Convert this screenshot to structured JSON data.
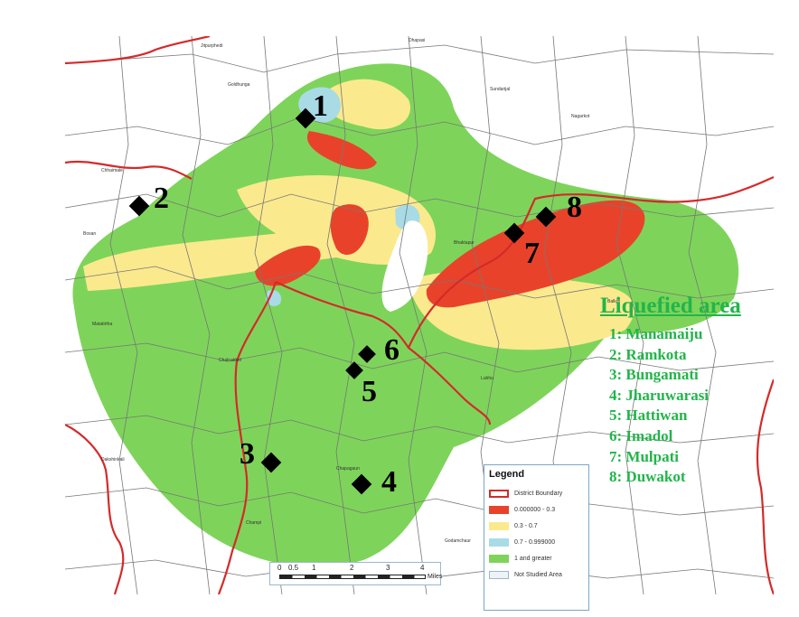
{
  "liquefied_panel": {
    "title": "Liquefied area",
    "sites": [
      "1: Manamaiju",
      "2: Ramkota",
      "3: Bungamati",
      "4: Jharuwarasi",
      "5: Hattiwan",
      "6: Imadol",
      "7: Mulpati",
      "8: Duwakot"
    ]
  },
  "map_markers": [
    {
      "number": "1",
      "site": "Manamaiju"
    },
    {
      "number": "2",
      "site": "Ramkota"
    },
    {
      "number": "3",
      "site": "Bungamati"
    },
    {
      "number": "4",
      "site": "Jharuwarasi"
    },
    {
      "number": "5",
      "site": "Hattiwan"
    },
    {
      "number": "6",
      "site": "Imadol"
    },
    {
      "number": "7",
      "site": "Mulpati"
    },
    {
      "number": "8",
      "site": "Duwakot"
    }
  ],
  "legend": {
    "title": "Legend",
    "items": [
      {
        "label": "District Boundary",
        "symbol": "outline",
        "color": "#d42a2a"
      },
      {
        "label": "0.000000 - 0.3",
        "symbol": "fill",
        "color": "#e8432a"
      },
      {
        "label": "0.3 - 0.7",
        "symbol": "fill",
        "color": "#fbe98e"
      },
      {
        "label": "0.7 - 0.999000",
        "symbol": "fill",
        "color": "#a8dbe6"
      },
      {
        "label": "1 and greater",
        "symbol": "fill",
        "color": "#7ed45a"
      },
      {
        "label": "Not Studied Area",
        "symbol": "fill",
        "color": "#eef3f8"
      }
    ]
  },
  "scale_bar": {
    "ticks": [
      "0",
      "0.5",
      "1",
      "2",
      "3",
      "4"
    ],
    "unit": "Miles"
  },
  "colors": {
    "safe_zone": "#7ed45a",
    "moderate_zone": "#fbe98e",
    "marginal_zone": "#a8dbe6",
    "liquefaction_zone": "#e8432a",
    "district_boundary": "#d42a2a",
    "vdc_boundary": "#777777",
    "panel_text": "#22b54a"
  }
}
